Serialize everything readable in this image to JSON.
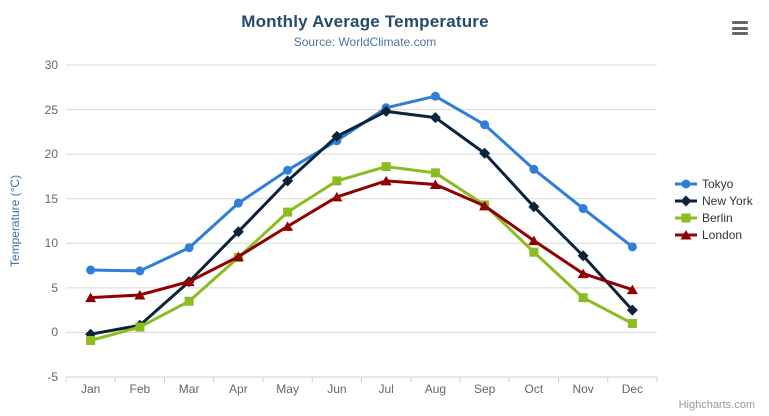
{
  "header": {
    "title": "Monthly Average Temperature",
    "subtitle": "Source: WorldClimate.com"
  },
  "credit_label": "Highcharts.com",
  "export_menu": {
    "icon": "hamburger-menu-icon"
  },
  "chart_data": {
    "type": "line",
    "title": "Monthly Average Temperature",
    "subtitle": "Source: WorldClimate.com",
    "categories": [
      "Jan",
      "Feb",
      "Mar",
      "Apr",
      "May",
      "Jun",
      "Jul",
      "Aug",
      "Sep",
      "Oct",
      "Nov",
      "Dec"
    ],
    "xlabel": "",
    "ylabel": "Temperature (°C)",
    "ylim": [
      -5,
      30
    ],
    "yticks": [
      -5,
      0,
      5,
      10,
      15,
      20,
      25,
      30
    ],
    "grid": true,
    "legend_position": "right",
    "series": [
      {
        "name": "Tokyo",
        "color": "#2f7ed8",
        "marker": "circle",
        "values": [
          7.0,
          6.9,
          9.5,
          14.5,
          18.2,
          21.5,
          25.2,
          26.5,
          23.3,
          18.3,
          13.9,
          9.6
        ]
      },
      {
        "name": "New York",
        "color": "#0d233a",
        "marker": "diamond",
        "values": [
          -0.2,
          0.8,
          5.7,
          11.3,
          17.0,
          22.0,
          24.8,
          24.1,
          20.1,
          14.1,
          8.6,
          2.5
        ]
      },
      {
        "name": "Berlin",
        "color": "#8bbc21",
        "marker": "square",
        "values": [
          -0.9,
          0.6,
          3.5,
          8.4,
          13.5,
          17.0,
          18.6,
          17.9,
          14.3,
          9.0,
          3.9,
          1.0
        ]
      },
      {
        "name": "London",
        "color": "#910000",
        "marker": "triangle",
        "values": [
          3.9,
          4.2,
          5.7,
          8.5,
          11.9,
          15.2,
          17.0,
          16.6,
          14.2,
          10.3,
          6.6,
          4.8
        ]
      }
    ],
    "colors": {
      "background": "#ffffff",
      "title": "#274b6d",
      "subtitle": "#4d759e",
      "y_axis_title": "#4572a7",
      "axis_label": "#666666",
      "grid_line": "#d8d8d8",
      "axis_line": "#c0d0e0",
      "legend_text": "#333333",
      "credit": "#999999",
      "menu_icon": "#666666"
    }
  }
}
